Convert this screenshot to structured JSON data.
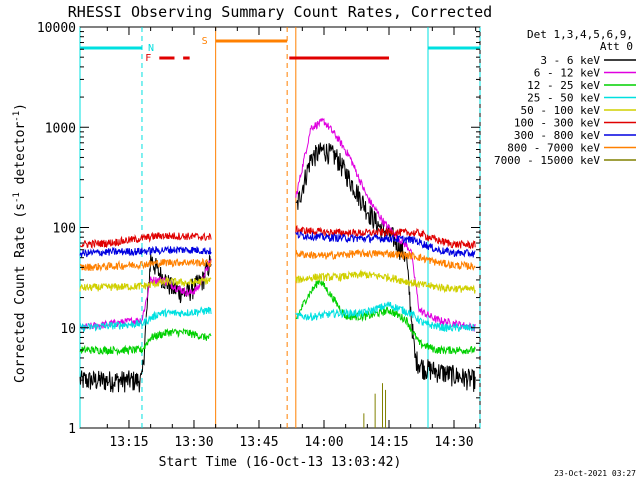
{
  "chart_data": {
    "type": "line",
    "title": "RHESSI Observing Summary Count Rates, Corrected",
    "xlabel": "Start Time (16-Oct-13 13:03:42)",
    "ylabel_main": "Corrected Count Rate (s",
    "ylabel_sup1": "-1",
    "ylabel_mid": " detector",
    "ylabel_sup2": "-1",
    "ylabel_end": ")",
    "x_range_min": [
      3.7,
      61
    ],
    "y_scale": "log",
    "ylim": [
      1,
      10000
    ],
    "x_ticks": [
      {
        "t": 15,
        "label": "13:15"
      },
      {
        "t": 30,
        "label": "13:30"
      },
      {
        "t": 45,
        "label": "13:45"
      },
      {
        "t": 60,
        "label": "14:00"
      },
      {
        "t": 75,
        "label": "14:15"
      },
      {
        "t": 90,
        "label": "14:30"
      }
    ],
    "y_ticks": [
      {
        "v": 1,
        "label": "1"
      },
      {
        "v": 10,
        "label": "10"
      },
      {
        "v": 100,
        "label": "100"
      },
      {
        "v": 1000,
        "label": "1000"
      },
      {
        "v": 10000,
        "label": "10000"
      }
    ],
    "legend_header": [
      "Det 1,3,4,5,6,9,",
      "Att 0"
    ],
    "legend_placement": "top-right",
    "series": [
      {
        "name": "3 - 6 keV",
        "color": "#000000",
        "points": [
          [
            3.7,
            3
          ],
          [
            18,
            3
          ],
          [
            20,
            50
          ],
          [
            22,
            35
          ],
          [
            25,
            25
          ],
          [
            28,
            22
          ],
          [
            32,
            30
          ],
          [
            34,
            48
          ]
        ],
        "points2": [
          [
            53.5,
            150
          ],
          [
            57,
            500
          ],
          [
            60,
            600
          ],
          [
            63,
            500
          ],
          [
            66,
            300
          ],
          [
            70,
            150
          ],
          [
            73,
            100
          ],
          [
            76,
            80
          ],
          [
            79,
            50
          ],
          [
            81,
            5
          ],
          [
            83,
            4
          ],
          [
            95,
            3
          ]
        ]
      },
      {
        "name": "6 - 12 keV",
        "color": "#e000e0",
        "points": [
          [
            3.7,
            10
          ],
          [
            18,
            12
          ],
          [
            20,
            30
          ],
          [
            23,
            30
          ],
          [
            26,
            25
          ],
          [
            29,
            22
          ],
          [
            31,
            25
          ],
          [
            34,
            48
          ]
        ],
        "points2": [
          [
            53.5,
            200
          ],
          [
            57,
            1000
          ],
          [
            60,
            1150
          ],
          [
            63,
            800
          ],
          [
            66,
            500
          ],
          [
            70,
            200
          ],
          [
            74,
            110
          ],
          [
            77,
            80
          ],
          [
            80,
            60
          ],
          [
            82,
            15
          ],
          [
            86,
            12
          ],
          [
            95,
            10
          ]
        ]
      },
      {
        "name": "12 - 25 keV",
        "color": "#00d000",
        "points": [
          [
            3.7,
            6
          ],
          [
            18,
            6
          ],
          [
            20,
            8
          ],
          [
            24,
            9
          ],
          [
            28,
            9
          ],
          [
            33,
            8
          ],
          [
            34,
            8
          ]
        ],
        "points2": [
          [
            53.5,
            12
          ],
          [
            56,
            20
          ],
          [
            59,
            30
          ],
          [
            62,
            20
          ],
          [
            65,
            13
          ],
          [
            70,
            13
          ],
          [
            75,
            15
          ],
          [
            79,
            12
          ],
          [
            82,
            7
          ],
          [
            86,
            6
          ],
          [
            95,
            6
          ]
        ]
      },
      {
        "name": "25 - 50 keV",
        "color": "#00e0e0",
        "points": [
          [
            3.7,
            10
          ],
          [
            18,
            11
          ],
          [
            22,
            14
          ],
          [
            27,
            14
          ],
          [
            34,
            15
          ]
        ],
        "points2": [
          [
            53.5,
            13
          ],
          [
            58,
            13
          ],
          [
            63,
            14
          ],
          [
            69,
            14
          ],
          [
            75,
            17
          ],
          [
            80,
            14
          ],
          [
            83,
            11
          ],
          [
            88,
            10
          ],
          [
            95,
            10
          ]
        ]
      },
      {
        "name": "50 - 100 keV",
        "color": "#d0d000",
        "points": [
          [
            3.7,
            25
          ],
          [
            18,
            26
          ],
          [
            24,
            29
          ],
          [
            29,
            28
          ],
          [
            34,
            30
          ]
        ],
        "points2": [
          [
            53.5,
            30
          ],
          [
            58,
            32
          ],
          [
            63,
            32
          ],
          [
            69,
            34
          ],
          [
            75,
            32
          ],
          [
            82,
            27
          ],
          [
            88,
            25
          ],
          [
            95,
            24
          ]
        ]
      },
      {
        "name": "100 - 300 keV",
        "color": "#e00000",
        "points": [
          [
            3.7,
            68
          ],
          [
            10,
            70
          ],
          [
            18,
            78
          ],
          [
            22,
            83
          ],
          [
            28,
            82
          ],
          [
            34,
            80
          ]
        ],
        "points2": [
          [
            53.5,
            95
          ],
          [
            60,
            90
          ],
          [
            67,
            88
          ],
          [
            75,
            90
          ],
          [
            82,
            88
          ],
          [
            86,
            75
          ],
          [
            90,
            68
          ],
          [
            95,
            67
          ]
        ]
      },
      {
        "name": "300 - 800 keV",
        "color": "#0000e0",
        "points": [
          [
            3.7,
            55
          ],
          [
            10,
            57
          ],
          [
            18,
            58
          ],
          [
            24,
            60
          ],
          [
            30,
            60
          ],
          [
            34,
            58
          ]
        ],
        "points2": [
          [
            53.5,
            85
          ],
          [
            60,
            80
          ],
          [
            67,
            78
          ],
          [
            75,
            78
          ],
          [
            81,
            75
          ],
          [
            86,
            60
          ],
          [
            90,
            56
          ],
          [
            95,
            55
          ]
        ]
      },
      {
        "name": "800 - 7000 keV",
        "color": "#ff8000",
        "points": [
          [
            3.7,
            40
          ],
          [
            10,
            41
          ],
          [
            18,
            43
          ],
          [
            24,
            45
          ],
          [
            30,
            45
          ],
          [
            34,
            44
          ]
        ],
        "points2": [
          [
            53.5,
            55
          ],
          [
            60,
            52
          ],
          [
            67,
            55
          ],
          [
            75,
            55
          ],
          [
            81,
            52
          ],
          [
            86,
            45
          ],
          [
            90,
            42
          ],
          [
            95,
            41
          ]
        ]
      },
      {
        "name": "7000 - 15000 keV",
        "color": "#808000",
        "points": [
          [
            60,
            1
          ],
          [
            73,
            1
          ]
        ],
        "points2": [
          [
            70,
            1
          ],
          [
            71,
            1
          ]
        ]
      }
    ],
    "flags": {
      "night_label": "N",
      "saa_label": "S",
      "flare_label": "F",
      "night_color": "#00e0e0",
      "saa_color": "#ff8000",
      "flare_color": "#e00000",
      "night_bars": [
        [
          3.7,
          18
        ],
        [
          84,
          96
        ]
      ],
      "saa_bars": [
        [
          35,
          51.5
        ]
      ],
      "flare_bars": [
        [
          22,
          25.5
        ],
        [
          27.5,
          29
        ],
        [
          52,
          75
        ]
      ],
      "night_lines_dashed": [
        18,
        96
      ],
      "night_lines_solid": [
        3.7,
        84
      ],
      "saa_lines_solid": [
        35,
        53.5
      ],
      "saa_lines_dashed": [
        51.5
      ]
    },
    "footer": "23-Oct-2021 03:27"
  }
}
